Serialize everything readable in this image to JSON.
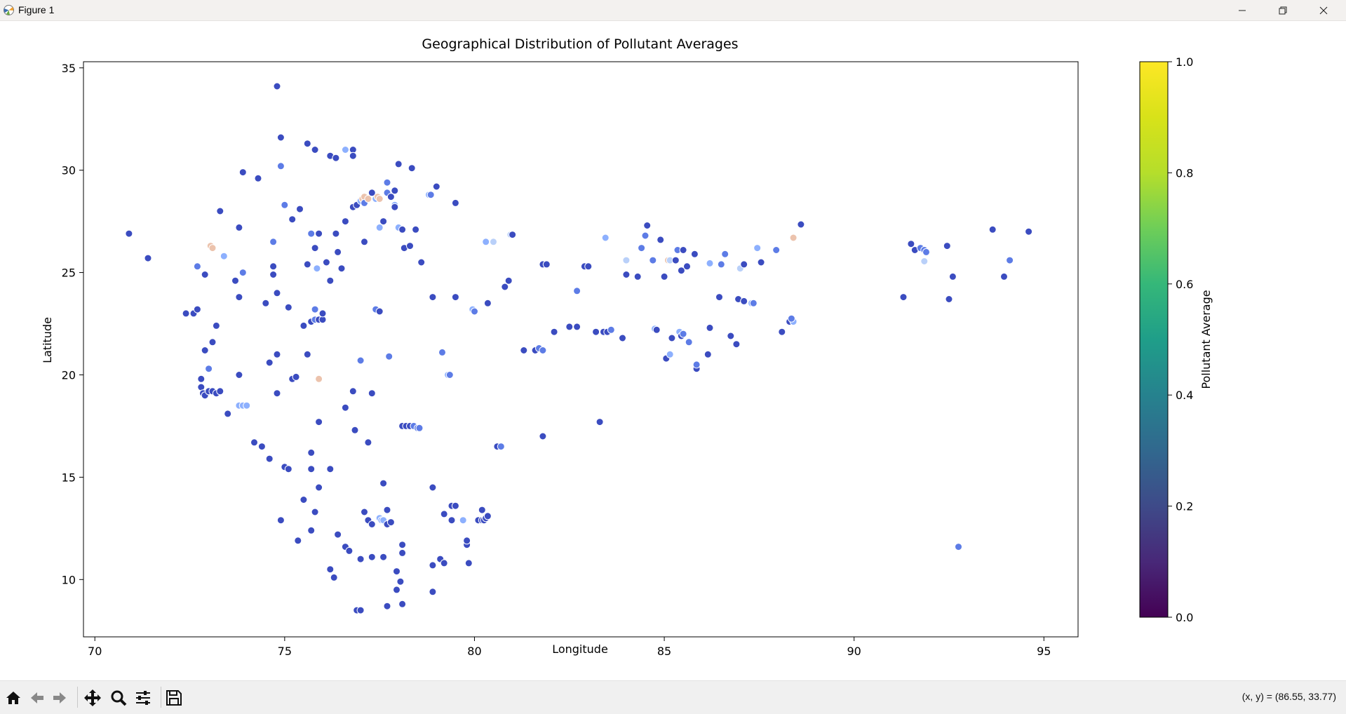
{
  "window": {
    "title": "Figure 1"
  },
  "toolbar": {
    "buttons": [
      "home-icon",
      "back-icon",
      "forward-icon",
      "pan-icon",
      "zoom-icon",
      "configure-subplots-icon",
      "save-icon"
    ],
    "coord_readout": "(x, y) = (86.55, 33.77)"
  },
  "chart_data": {
    "type": "scatter",
    "title": "Geographical Distribution of Pollutant Averages",
    "xlabel": "Longitude",
    "ylabel": "Latitude",
    "xlim": [
      69.7,
      95.9
    ],
    "ylim": [
      7.2,
      35.3
    ],
    "xticks": [
      70,
      75,
      80,
      85,
      90,
      95
    ],
    "yticks": [
      10,
      15,
      20,
      25,
      30,
      35
    ],
    "grid": false,
    "legend": "none",
    "marker_palette": "coolwarm",
    "colorbar": {
      "label": "Pollutant Average",
      "colormap": "viridis",
      "range": [
        0.0,
        1.0
      ],
      "ticks": [
        "0.0",
        "0.2",
        "0.4",
        "0.6",
        "0.8",
        "1.0"
      ]
    },
    "point_colors": {
      "low": "#3b4cc0",
      "mid_low": "#5d7ce6",
      "mid": "#8db0fe",
      "light": "#b9d0f9",
      "warm": "#ecc3ad"
    },
    "points": [
      [
        70.9,
        26.9,
        "low"
      ],
      [
        71.4,
        25.7,
        "low"
      ],
      [
        72.4,
        23.0,
        "low"
      ],
      [
        72.6,
        23.0,
        "low"
      ],
      [
        72.7,
        23.2,
        "low"
      ],
      [
        72.7,
        25.3,
        "mid_low"
      ],
      [
        72.8,
        19.8,
        "low"
      ],
      [
        72.8,
        19.4,
        "low"
      ],
      [
        72.85,
        19.1,
        "low"
      ],
      [
        72.9,
        19.0,
        "low"
      ],
      [
        72.9,
        21.2,
        "low"
      ],
      [
        72.9,
        24.9,
        "low"
      ],
      [
        73.0,
        19.2,
        "low"
      ],
      [
        73.0,
        20.3,
        "mid_low"
      ],
      [
        73.1,
        19.2,
        "low"
      ],
      [
        73.05,
        26.3,
        "warm"
      ],
      [
        73.1,
        26.2,
        "warm"
      ],
      [
        73.1,
        21.6,
        "low"
      ],
      [
        73.2,
        19.1,
        "low"
      ],
      [
        73.2,
        22.4,
        "low"
      ],
      [
        73.3,
        19.2,
        "low"
      ],
      [
        73.3,
        28.0,
        "low"
      ],
      [
        73.4,
        25.8,
        "mid"
      ],
      [
        73.5,
        18.1,
        "low"
      ],
      [
        73.7,
        24.6,
        "low"
      ],
      [
        73.8,
        23.8,
        "low"
      ],
      [
        73.8,
        27.2,
        "low"
      ],
      [
        73.8,
        18.5,
        "mid"
      ],
      [
        73.9,
        18.5,
        "mid"
      ],
      [
        74.0,
        18.5,
        "mid"
      ],
      [
        73.8,
        20.0,
        "low"
      ],
      [
        73.9,
        25.0,
        "mid_low"
      ],
      [
        73.9,
        29.9,
        "low"
      ],
      [
        74.2,
        16.7,
        "low"
      ],
      [
        74.3,
        29.6,
        "low"
      ],
      [
        74.4,
        16.5,
        "low"
      ],
      [
        74.5,
        23.5,
        "low"
      ],
      [
        74.6,
        15.9,
        "low"
      ],
      [
        74.6,
        20.6,
        "low"
      ],
      [
        74.7,
        25.3,
        "low"
      ],
      [
        74.7,
        24.9,
        "low"
      ],
      [
        74.7,
        26.5,
        "mid_low"
      ],
      [
        74.8,
        19.1,
        "low"
      ],
      [
        74.8,
        21.0,
        "low"
      ],
      [
        74.8,
        24.0,
        "low"
      ],
      [
        74.8,
        34.1,
        "low"
      ],
      [
        74.9,
        31.6,
        "low"
      ],
      [
        74.9,
        12.9,
        "low"
      ],
      [
        74.9,
        30.2,
        "mid_low"
      ],
      [
        75.0,
        28.3,
        "mid_low"
      ],
      [
        75.0,
        15.5,
        "low"
      ],
      [
        75.1,
        23.3,
        "low"
      ],
      [
        75.1,
        15.4,
        "low"
      ],
      [
        75.2,
        27.6,
        "low"
      ],
      [
        75.2,
        19.8,
        "low"
      ],
      [
        75.3,
        19.9,
        "low"
      ],
      [
        75.35,
        11.9,
        "low"
      ],
      [
        75.4,
        28.1,
        "low"
      ],
      [
        75.5,
        22.4,
        "low"
      ],
      [
        75.5,
        13.9,
        "low"
      ],
      [
        75.6,
        21.0,
        "low"
      ],
      [
        75.6,
        31.3,
        "low"
      ],
      [
        75.6,
        25.4,
        "low"
      ],
      [
        75.7,
        16.2,
        "low"
      ],
      [
        75.7,
        15.4,
        "low"
      ],
      [
        75.7,
        12.4,
        "low"
      ],
      [
        75.7,
        22.6,
        "low"
      ],
      [
        75.7,
        26.9,
        "mid_low"
      ],
      [
        75.8,
        31.0,
        "low"
      ],
      [
        75.8,
        26.2,
        "low"
      ],
      [
        75.8,
        23.2,
        "mid_low"
      ],
      [
        75.8,
        22.7,
        "mid_low"
      ],
      [
        75.85,
        25.2,
        "mid"
      ],
      [
        75.8,
        13.3,
        "low"
      ],
      [
        75.9,
        26.9,
        "low"
      ],
      [
        75.9,
        22.7,
        "low"
      ],
      [
        75.9,
        19.8,
        "warm"
      ],
      [
        75.9,
        17.7,
        "low"
      ],
      [
        75.9,
        14.5,
        "low"
      ],
      [
        76.0,
        22.7,
        "low"
      ],
      [
        76.0,
        23.0,
        "low"
      ],
      [
        76.1,
        25.5,
        "low"
      ],
      [
        76.2,
        24.6,
        "low"
      ],
      [
        76.2,
        30.7,
        "low"
      ],
      [
        76.2,
        15.4,
        "low"
      ],
      [
        76.2,
        10.5,
        "low"
      ],
      [
        76.3,
        10.1,
        "low"
      ],
      [
        76.35,
        30.6,
        "low"
      ],
      [
        76.4,
        12.2,
        "low"
      ],
      [
        76.4,
        26.0,
        "low"
      ],
      [
        76.35,
        26.9,
        "low"
      ],
      [
        76.5,
        25.2,
        "low"
      ],
      [
        76.6,
        31.0,
        "mid"
      ],
      [
        76.6,
        11.6,
        "low"
      ],
      [
        76.6,
        18.4,
        "low"
      ],
      [
        76.6,
        27.5,
        "low"
      ],
      [
        76.7,
        11.4,
        "low"
      ],
      [
        76.8,
        31.0,
        "low"
      ],
      [
        76.8,
        30.7,
        "low"
      ],
      [
        76.8,
        19.2,
        "low"
      ],
      [
        76.8,
        28.2,
        "low"
      ],
      [
        76.9,
        28.3,
        "low"
      ],
      [
        76.85,
        17.3,
        "low"
      ],
      [
        76.9,
        8.5,
        "low"
      ],
      [
        77.0,
        8.5,
        "low"
      ],
      [
        77.0,
        11.0,
        "low"
      ],
      [
        77.0,
        20.7,
        "mid_low"
      ],
      [
        77.0,
        28.5,
        "mid"
      ],
      [
        77.05,
        28.6,
        "warm"
      ],
      [
        77.1,
        28.7,
        "warm"
      ],
      [
        77.1,
        26.5,
        "low"
      ],
      [
        77.1,
        28.4,
        "mid_low"
      ],
      [
        77.1,
        13.3,
        "low"
      ],
      [
        77.2,
        16.7,
        "low"
      ],
      [
        77.2,
        28.6,
        "warm"
      ],
      [
        77.2,
        12.9,
        "low"
      ],
      [
        77.3,
        28.9,
        "low"
      ],
      [
        77.3,
        19.1,
        "low"
      ],
      [
        77.3,
        11.1,
        "low"
      ],
      [
        77.3,
        12.7,
        "low"
      ],
      [
        77.4,
        28.6,
        "mid"
      ],
      [
        77.4,
        23.2,
        "mid_low"
      ],
      [
        77.45,
        28.7,
        "warm"
      ],
      [
        77.5,
        28.6,
        "warm"
      ],
      [
        77.5,
        23.1,
        "low"
      ],
      [
        77.5,
        27.2,
        "mid"
      ],
      [
        77.5,
        13.0,
        "mid"
      ],
      [
        77.55,
        12.9,
        "mid"
      ],
      [
        77.6,
        12.9,
        "mid"
      ],
      [
        77.6,
        14.7,
        "low"
      ],
      [
        77.6,
        11.1,
        "low"
      ],
      [
        77.6,
        27.5,
        "low"
      ],
      [
        77.7,
        28.9,
        "mid_low"
      ],
      [
        77.7,
        29.4,
        "mid_low"
      ],
      [
        77.7,
        8.7,
        "low"
      ],
      [
        77.7,
        12.7,
        "low"
      ],
      [
        77.7,
        13.4,
        "low"
      ],
      [
        77.75,
        20.9,
        "mid_low"
      ],
      [
        77.8,
        28.7,
        "low"
      ],
      [
        77.8,
        12.8,
        "low"
      ],
      [
        77.9,
        28.3,
        "mid"
      ],
      [
        77.9,
        29.0,
        "low"
      ],
      [
        77.9,
        28.2,
        "low"
      ],
      [
        77.95,
        10.4,
        "low"
      ],
      [
        77.95,
        9.5,
        "low"
      ],
      [
        78.0,
        27.2,
        "mid"
      ],
      [
        78.0,
        30.3,
        "low"
      ],
      [
        78.05,
        9.9,
        "low"
      ],
      [
        78.1,
        27.1,
        "low"
      ],
      [
        78.1,
        11.3,
        "low"
      ],
      [
        78.1,
        11.7,
        "low"
      ],
      [
        78.1,
        8.8,
        "low"
      ],
      [
        78.1,
        17.5,
        "low"
      ],
      [
        78.15,
        26.2,
        "low"
      ],
      [
        78.2,
        17.5,
        "low"
      ],
      [
        78.3,
        17.5,
        "low"
      ],
      [
        78.3,
        26.3,
        "low"
      ],
      [
        78.35,
        30.1,
        "low"
      ],
      [
        78.4,
        17.5,
        "mid_low"
      ],
      [
        78.45,
        27.1,
        "low"
      ],
      [
        78.5,
        17.4,
        "mid_low"
      ],
      [
        78.55,
        17.4,
        "mid_low"
      ],
      [
        78.6,
        25.5,
        "low"
      ],
      [
        78.8,
        28.8,
        "mid"
      ],
      [
        78.85,
        28.8,
        "mid_low"
      ],
      [
        78.9,
        23.8,
        "low"
      ],
      [
        78.9,
        10.7,
        "low"
      ],
      [
        78.9,
        14.5,
        "low"
      ],
      [
        78.9,
        9.4,
        "low"
      ],
      [
        79.0,
        29.2,
        "low"
      ],
      [
        79.1,
        11.0,
        "low"
      ],
      [
        79.15,
        21.1,
        "mid_low"
      ],
      [
        79.2,
        13.2,
        "low"
      ],
      [
        79.2,
        10.8,
        "low"
      ],
      [
        79.3,
        20.0,
        "mid"
      ],
      [
        79.35,
        20.0,
        "mid_low"
      ],
      [
        79.4,
        12.9,
        "low"
      ],
      [
        79.4,
        13.6,
        "low"
      ],
      [
        79.5,
        13.6,
        "low"
      ],
      [
        79.5,
        28.4,
        "low"
      ],
      [
        79.5,
        23.8,
        "low"
      ],
      [
        79.7,
        12.9,
        "mid"
      ],
      [
        79.8,
        11.7,
        "low"
      ],
      [
        79.8,
        11.9,
        "low"
      ],
      [
        79.85,
        10.8,
        "low"
      ],
      [
        79.95,
        23.2,
        "mid"
      ],
      [
        80.0,
        23.1,
        "mid_low"
      ],
      [
        80.1,
        12.9,
        "low"
      ],
      [
        80.2,
        12.9,
        "low"
      ],
      [
        80.2,
        13.4,
        "low"
      ],
      [
        80.25,
        12.9,
        "low"
      ],
      [
        80.3,
        13.0,
        "low"
      ],
      [
        80.35,
        13.1,
        "low"
      ],
      [
        80.3,
        26.5,
        "mid"
      ],
      [
        80.35,
        23.5,
        "low"
      ],
      [
        80.5,
        26.5,
        "light"
      ],
      [
        80.6,
        16.5,
        "low"
      ],
      [
        80.7,
        16.5,
        "mid_low"
      ],
      [
        80.8,
        24.3,
        "low"
      ],
      [
        80.9,
        24.6,
        "low"
      ],
      [
        80.95,
        26.85,
        "light"
      ],
      [
        81.0,
        26.85,
        "low"
      ],
      [
        81.3,
        21.2,
        "low"
      ],
      [
        81.6,
        21.2,
        "low"
      ],
      [
        81.7,
        21.3,
        "mid_low"
      ],
      [
        81.8,
        21.2,
        "mid_low"
      ],
      [
        81.8,
        17.0,
        "low"
      ],
      [
        81.8,
        25.4,
        "low"
      ],
      [
        81.9,
        25.4,
        "low"
      ],
      [
        82.1,
        22.1,
        "low"
      ],
      [
        82.5,
        22.35,
        "low"
      ],
      [
        82.7,
        22.35,
        "low"
      ],
      [
        82.7,
        24.1,
        "mid_low"
      ],
      [
        82.9,
        25.3,
        "low"
      ],
      [
        83.0,
        25.3,
        "low"
      ],
      [
        83.2,
        22.1,
        "low"
      ],
      [
        83.3,
        17.7,
        "low"
      ],
      [
        83.4,
        22.1,
        "low"
      ],
      [
        83.45,
        26.7,
        "mid"
      ],
      [
        83.5,
        22.1,
        "low"
      ],
      [
        83.6,
        22.2,
        "mid_low"
      ],
      [
        83.9,
        21.8,
        "low"
      ],
      [
        84.0,
        25.6,
        "light"
      ],
      [
        84.0,
        24.9,
        "low"
      ],
      [
        84.3,
        24.8,
        "low"
      ],
      [
        84.4,
        26.2,
        "mid_low"
      ],
      [
        84.5,
        26.8,
        "mid_low"
      ],
      [
        84.55,
        27.3,
        "low"
      ],
      [
        84.7,
        25.6,
        "mid_low"
      ],
      [
        84.75,
        22.25,
        "mid"
      ],
      [
        84.8,
        22.2,
        "low"
      ],
      [
        84.9,
        26.6,
        "low"
      ],
      [
        85.0,
        24.8,
        "low"
      ],
      [
        85.05,
        20.8,
        "low"
      ],
      [
        85.1,
        25.6,
        "warm"
      ],
      [
        85.15,
        25.6,
        "light"
      ],
      [
        85.15,
        21.0,
        "mid"
      ],
      [
        85.2,
        21.8,
        "low"
      ],
      [
        85.3,
        25.6,
        "low"
      ],
      [
        85.35,
        26.1,
        "mid_low"
      ],
      [
        85.4,
        22.1,
        "mid"
      ],
      [
        85.45,
        21.9,
        "low"
      ],
      [
        85.45,
        25.1,
        "low"
      ],
      [
        85.5,
        22.0,
        "mid_low"
      ],
      [
        85.5,
        26.1,
        "low"
      ],
      [
        85.6,
        25.3,
        "low"
      ],
      [
        85.65,
        21.6,
        "mid_low"
      ],
      [
        85.8,
        25.9,
        "low"
      ],
      [
        85.85,
        20.3,
        "low"
      ],
      [
        85.85,
        20.5,
        "mid_low"
      ],
      [
        86.15,
        21.0,
        "low"
      ],
      [
        86.2,
        22.3,
        "low"
      ],
      [
        86.2,
        25.45,
        "mid"
      ],
      [
        86.45,
        23.8,
        "low"
      ],
      [
        86.5,
        25.4,
        "mid_low"
      ],
      [
        86.6,
        25.9,
        "mid_low"
      ],
      [
        86.75,
        21.9,
        "low"
      ],
      [
        86.9,
        21.5,
        "low"
      ],
      [
        86.95,
        23.7,
        "low"
      ],
      [
        87.0,
        25.2,
        "light"
      ],
      [
        87.1,
        23.6,
        "low"
      ],
      [
        87.1,
        25.4,
        "low"
      ],
      [
        87.3,
        23.5,
        "mid"
      ],
      [
        87.35,
        23.5,
        "mid_low"
      ],
      [
        87.45,
        26.2,
        "mid"
      ],
      [
        87.55,
        25.5,
        "low"
      ],
      [
        87.95,
        26.1,
        "mid_low"
      ],
      [
        88.1,
        22.1,
        "low"
      ],
      [
        88.3,
        22.6,
        "low"
      ],
      [
        88.4,
        22.6,
        "mid"
      ],
      [
        88.35,
        22.75,
        "mid_low"
      ],
      [
        88.4,
        26.7,
        "warm"
      ],
      [
        88.6,
        27.35,
        "low"
      ],
      [
        91.3,
        23.8,
        "low"
      ],
      [
        91.5,
        26.4,
        "low"
      ],
      [
        91.6,
        26.1,
        "low"
      ],
      [
        91.75,
        26.2,
        "mid_low"
      ],
      [
        91.85,
        26.1,
        "mid_low"
      ],
      [
        91.9,
        26.0,
        "mid_low"
      ],
      [
        91.85,
        25.55,
        "light"
      ],
      [
        92.45,
        26.3,
        "low"
      ],
      [
        92.5,
        23.7,
        "low"
      ],
      [
        92.6,
        24.8,
        "low"
      ],
      [
        92.75,
        11.6,
        "mid_low"
      ],
      [
        93.65,
        27.1,
        "low"
      ],
      [
        93.95,
        24.8,
        "low"
      ],
      [
        94.1,
        25.6,
        "mid_low"
      ],
      [
        94.6,
        27.0,
        "low"
      ]
    ]
  }
}
